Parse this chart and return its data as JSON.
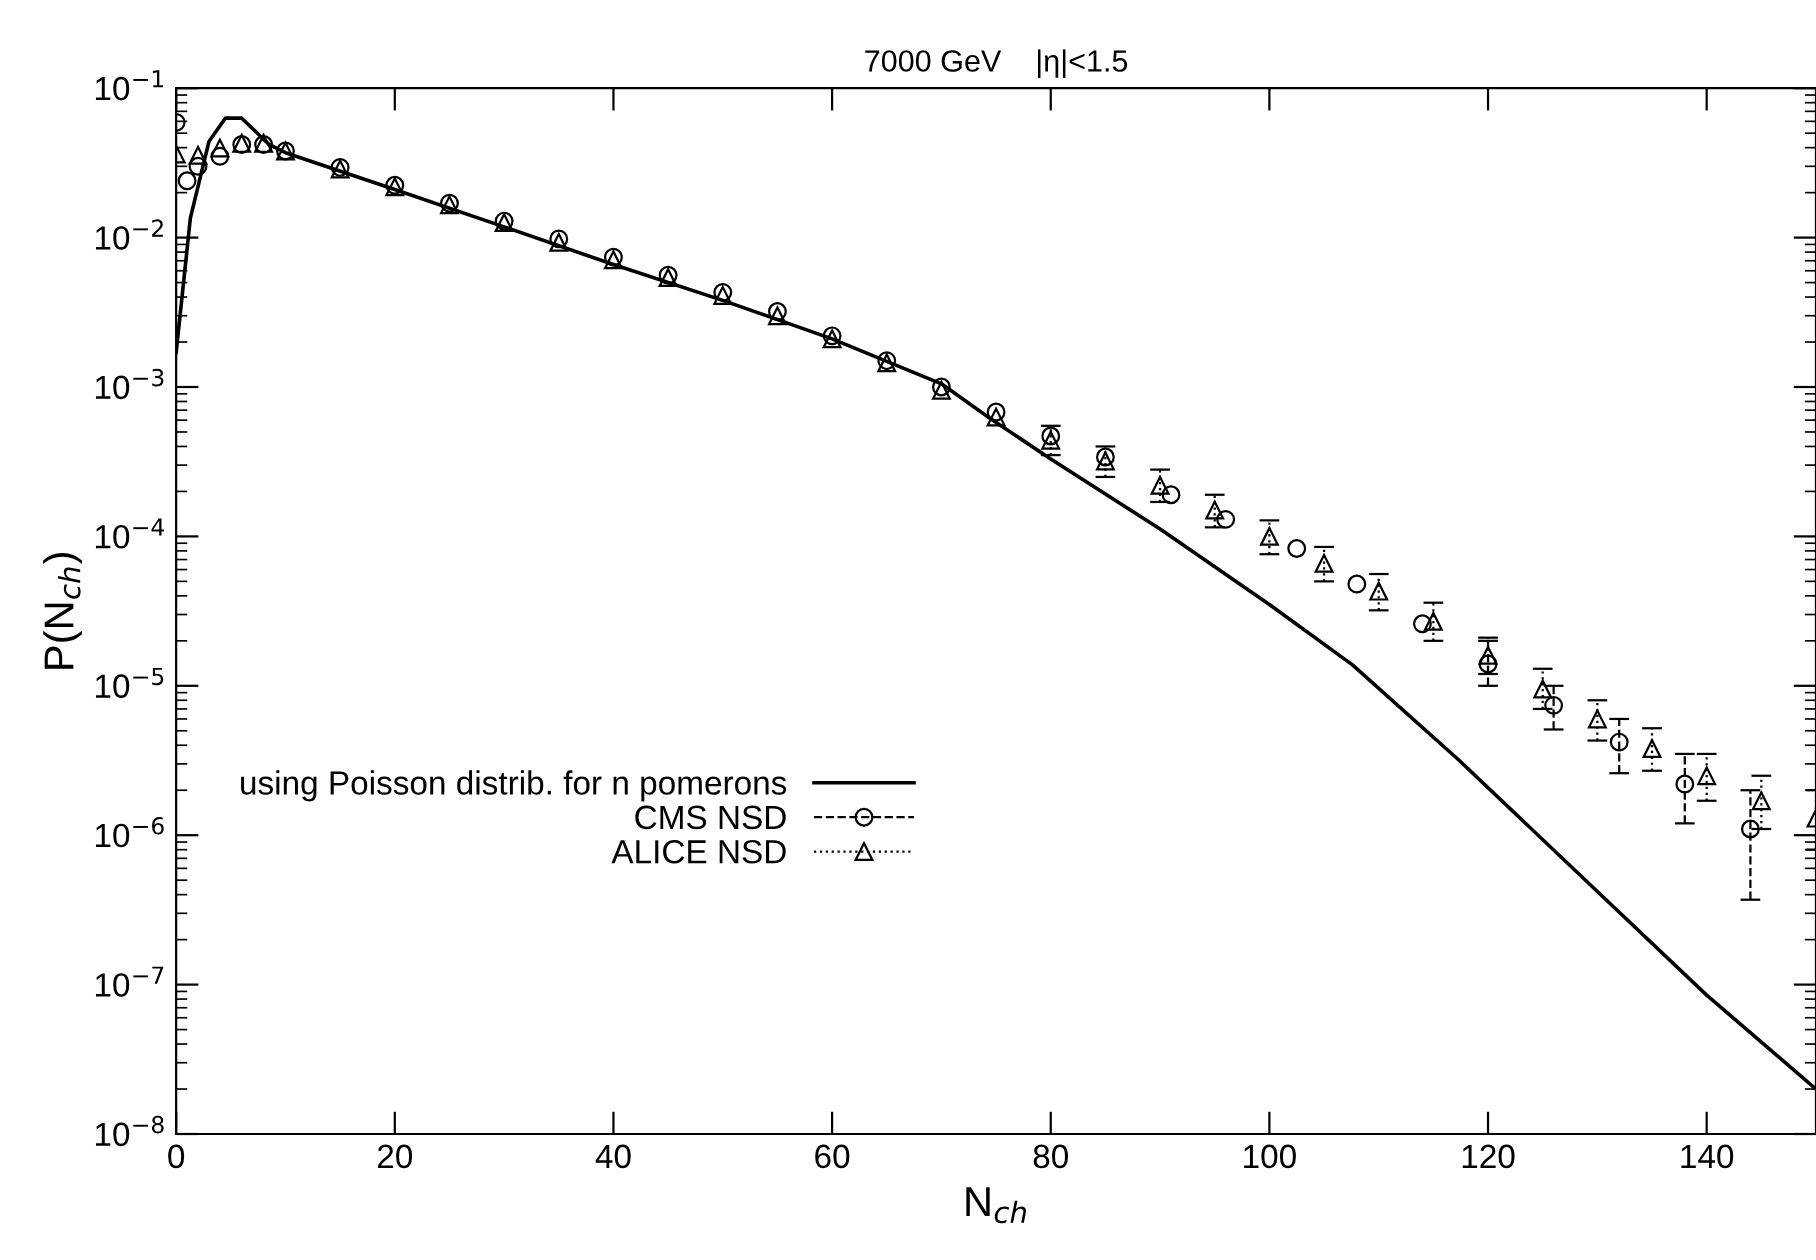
{
  "chart_data": {
    "type": "line",
    "title": "7000 GeV    |η|<1.5",
    "xlabel": "N$_{ch}$",
    "ylabel": "P(N$_{ch}$)",
    "log": "y",
    "xlim": [
      0,
      150
    ],
    "ylim": [
      1e-08,
      0.1
    ],
    "xticks": [
      0,
      20,
      40,
      60,
      80,
      100,
      120,
      140
    ],
    "yticks": [
      {
        "value": 1e-08,
        "label": "10$^{−8}$"
      },
      {
        "value": 1e-07,
        "label": "10$^{−7}$"
      },
      {
        "value": 1e-06,
        "label": "10$^{−6}$"
      },
      {
        "value": 1e-05,
        "label": "10$^{−5}$"
      },
      {
        "value": 0.0001,
        "label": "10$^{−4}$"
      },
      {
        "value": 0.001,
        "label": "10$^{−3}$"
      },
      {
        "value": 0.01,
        "label": "10$^{−2}$"
      },
      {
        "value": 0.1,
        "label": "10$^{−1}$"
      }
    ],
    "grid": false,
    "legend": "left",
    "series": [
      {
        "name": "using Poisson distrib. for n pomerons",
        "color": "#000000",
        "marker": "none",
        "line_style": "solid",
        "x": [
          0,
          1.3,
          3,
          4.5,
          6,
          8.5,
          10,
          20,
          30,
          40,
          50,
          60,
          70,
          74.4,
          80,
          90,
          100,
          107.6,
          117.3,
          130,
          140,
          150
        ],
        "values": [
          0.0017,
          0.0135,
          0.044,
          0.063,
          0.063,
          0.042,
          0.037,
          0.021,
          0.0118,
          0.0066,
          0.0038,
          0.0021,
          0.00105,
          0.00062,
          0.00033,
          0.000112,
          3.5e-05,
          1.38e-05,
          3.2e-06,
          4.2e-07,
          8.5e-08,
          2e-08
        ]
      },
      {
        "name": "CMS NSD",
        "color": "#000000",
        "marker": "circle",
        "line_style": "dashed",
        "type": "scatter",
        "x": [
          0,
          1,
          2,
          4,
          6,
          8,
          10,
          15,
          20,
          25,
          30,
          35,
          40,
          45,
          50,
          55,
          60,
          65,
          70,
          75,
          80,
          85,
          91,
          96,
          102.5,
          108,
          114,
          120,
          126,
          132,
          138,
          144
        ],
        "values": [
          0.059,
          0.024,
          0.03,
          0.035,
          0.042,
          0.042,
          0.038,
          0.0295,
          0.0224,
          0.017,
          0.0129,
          0.0098,
          0.0074,
          0.0056,
          0.0043,
          0.0032,
          0.0022,
          0.0015,
          0.001,
          0.00068,
          0.00047,
          0.00034,
          0.00019,
          0.00013,
          8.3e-05,
          4.8e-05,
          2.6e-05,
          1.4e-05,
          7.4e-06,
          4.2e-06,
          2.2e-06,
          1.1e-06
        ],
        "errors": [
          null,
          null,
          null,
          null,
          null,
          null,
          null,
          null,
          null,
          null,
          null,
          null,
          null,
          null,
          null,
          null,
          null,
          null,
          null,
          null,
          null,
          null,
          null,
          null,
          null,
          null,
          null,
          [
            1e-05,
            2e-05
          ],
          [
            5.1e-06,
            1e-05
          ],
          [
            2.6e-06,
            6e-06
          ],
          [
            1.2e-06,
            3.5e-06
          ],
          [
            3.7e-07,
            2e-06
          ]
        ]
      },
      {
        "name": "ALICE NSD",
        "color": "#000000",
        "marker": "triangle",
        "line_style": "dotted",
        "type": "scatter",
        "x": [
          0,
          2,
          4,
          6,
          8,
          10,
          15,
          20,
          25,
          30,
          35,
          40,
          45,
          50,
          55,
          60,
          65,
          70,
          75,
          80,
          85,
          90,
          95,
          100,
          105,
          110,
          115,
          120,
          125,
          130,
          135,
          140,
          145,
          150
        ],
        "values": [
          0.0363,
          0.0355,
          0.0398,
          0.0427,
          0.0427,
          0.038,
          0.0288,
          0.0219,
          0.0166,
          0.0126,
          0.0093,
          0.0071,
          0.0054,
          0.0041,
          0.003,
          0.0021,
          0.00145,
          0.00095,
          0.00063,
          0.00044,
          0.00032,
          0.00022,
          0.00015,
          0.0001,
          6.6e-05,
          4.3e-05,
          2.7e-05,
          1.6e-05,
          9.5e-06,
          6e-06,
          3.8e-06,
          2.5e-06,
          1.7e-06,
          1.3e-06
        ],
        "errors": [
          null,
          null,
          null,
          null,
          null,
          null,
          null,
          null,
          null,
          null,
          null,
          null,
          null,
          null,
          null,
          null,
          null,
          null,
          null,
          [
            0.00035,
            0.00055
          ],
          [
            0.00025,
            0.0004
          ],
          [
            0.00017,
            0.00028
          ],
          [
            0.000115,
            0.00019
          ],
          [
            7.6e-05,
            0.000128
          ],
          [
            5e-05,
            8.5e-05
          ],
          [
            3.2e-05,
            5.6e-05
          ],
          [
            2e-05,
            3.6e-05
          ],
          [
            1.2e-05,
            2.1e-05
          ],
          [
            7e-06,
            1.3e-05
          ],
          [
            4.3e-06,
            8e-06
          ],
          [
            2.7e-06,
            5.2e-06
          ],
          [
            1.7e-06,
            3.5e-06
          ],
          [
            1.1e-06,
            2.5e-06
          ],
          [
            8e-07,
            2e-06
          ]
        ]
      }
    ]
  }
}
